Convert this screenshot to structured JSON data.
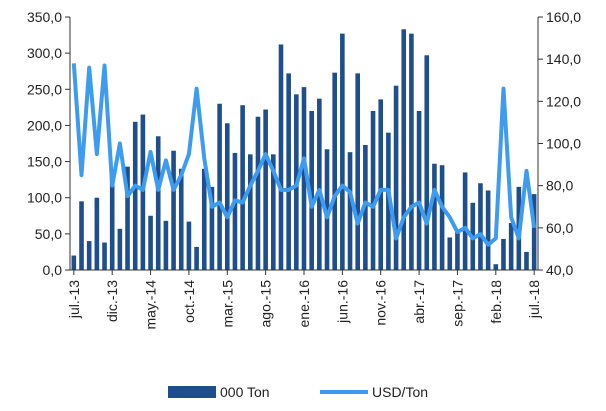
{
  "chart_data": {
    "type": "bar_line",
    "categories": [
      "jul.-13",
      null,
      null,
      null,
      null,
      "dic.-13",
      null,
      null,
      null,
      null,
      "may.-14",
      null,
      null,
      null,
      null,
      "oct.-14",
      null,
      null,
      null,
      null,
      "mar.-15",
      null,
      null,
      null,
      null,
      "ago.-15",
      null,
      null,
      null,
      null,
      "ene.-16",
      null,
      null,
      null,
      null,
      "jun.-16",
      null,
      null,
      null,
      null,
      "nov.-16",
      null,
      null,
      null,
      null,
      "abr.-17",
      null,
      null,
      null,
      null,
      "sep.-17",
      null,
      null,
      null,
      null,
      "feb.-18",
      null,
      null,
      null,
      null,
      "jul.-18"
    ],
    "series": [
      {
        "name": "000 Ton",
        "color": "#1f4e8c",
        "type": "bar",
        "values": [
          20,
          95,
          40,
          100,
          38,
          130,
          57,
          143,
          205,
          215,
          75,
          185,
          68,
          165,
          140,
          67,
          32,
          140,
          115,
          230,
          203,
          162,
          228,
          160,
          212,
          222,
          160,
          312,
          272,
          243,
          253,
          220,
          237,
          167,
          273,
          327,
          163,
          272,
          173,
          220,
          236,
          190,
          255,
          333,
          327,
          220,
          297,
          147,
          145,
          45,
          55,
          135,
          93,
          120,
          110,
          8,
          43,
          65,
          115,
          25,
          105
        ]
      },
      {
        "name": "USD/Ton",
        "color": "#3d9bf0",
        "type": "line",
        "axis": "y2",
        "values": [
          138,
          85,
          136,
          95,
          137,
          80,
          100,
          75,
          80,
          78,
          96,
          78,
          92,
          78,
          85,
          95,
          126,
          93,
          70,
          72,
          65,
          73,
          72,
          80,
          87,
          95,
          87,
          78,
          78,
          80,
          93,
          70,
          78,
          65,
          75,
          80,
          77,
          62,
          72,
          70,
          78,
          78,
          55,
          65,
          70,
          72,
          62,
          78,
          70,
          65,
          58,
          60,
          55,
          57,
          52,
          55,
          126,
          65,
          55,
          87,
          60
        ]
      }
    ],
    "ylim": [
      0,
      350
    ],
    "yticks": [
      {
        "value": 0,
        "label": "0,0"
      },
      {
        "value": 50,
        "label": "50,0"
      },
      {
        "value": 100,
        "label": "100,0"
      },
      {
        "value": 150,
        "label": "150,0"
      },
      {
        "value": 200,
        "label": "200,0"
      },
      {
        "value": 250,
        "label": "250,0"
      },
      {
        "value": 300,
        "label": "300,0"
      },
      {
        "value": 350,
        "label": "350,0"
      }
    ],
    "y2lim": [
      40,
      160
    ],
    "y2ticks": [
      {
        "value": 40,
        "label": "40,0"
      },
      {
        "value": 60,
        "label": "60,0"
      },
      {
        "value": 80,
        "label": "80,0"
      },
      {
        "value": 100,
        "label": "100,0"
      },
      {
        "value": 120,
        "label": "120,0"
      },
      {
        "value": 140,
        "label": "140,0"
      },
      {
        "value": 160,
        "label": "160,0"
      }
    ],
    "legend": "bottom"
  }
}
